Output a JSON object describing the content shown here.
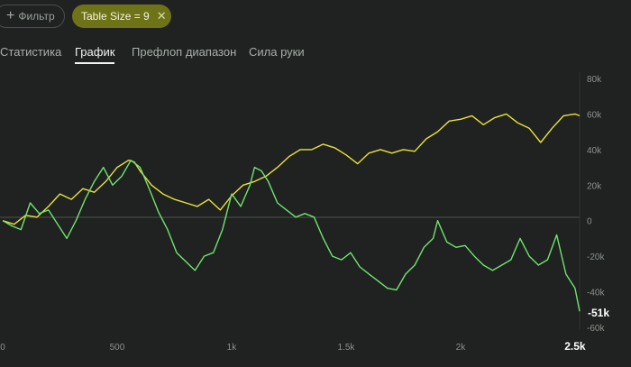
{
  "filter_chip": {
    "label": "Фильтр",
    "icon": "plus-icon"
  },
  "table_chip": {
    "label": "Table Size = 9",
    "icon": "close-icon"
  },
  "tabs": [
    {
      "label": "Статистика",
      "active": false
    },
    {
      "label": "График",
      "active": true
    },
    {
      "label": "Префлоп диапазон",
      "active": false
    },
    {
      "label": "Сила руки",
      "active": false
    }
  ],
  "colors": {
    "background": "#1f2220",
    "yellow_series": "#e9e23a",
    "green_series": "#72e36f",
    "chip_active": "#6f7317"
  },
  "chart_data": {
    "type": "line",
    "title": "",
    "xlabel": "",
    "ylabel": "",
    "x_ticks": [
      "0",
      "500",
      "1k",
      "1.5k",
      "2k",
      "2.5k"
    ],
    "x_tick_values": [
      0,
      500,
      1000,
      1500,
      2000,
      2500
    ],
    "y_ticks": [
      "80k",
      "60k",
      "40k",
      "20k",
      "0",
      "-20k",
      "-40k",
      "-60k"
    ],
    "y_tick_values": [
      80000,
      60000,
      40000,
      20000,
      0,
      -20000,
      -40000,
      -60000
    ],
    "xlim": [
      0,
      2520
    ],
    "ylim": [
      -60000,
      80000
    ],
    "grid": false,
    "zero_line": true,
    "end_labels": {
      "x": "2.5k",
      "y": "-51k"
    },
    "series": [
      {
        "color": "#e9e23a",
        "x": [
          0,
          50,
          100,
          150,
          200,
          250,
          300,
          350,
          400,
          450,
          500,
          550,
          575,
          600,
          650,
          700,
          750,
          800,
          850,
          900,
          950,
          1000,
          1050,
          1100,
          1150,
          1200,
          1250,
          1300,
          1350,
          1400,
          1450,
          1500,
          1550,
          1600,
          1650,
          1700,
          1750,
          1800,
          1850,
          1900,
          1950,
          2000,
          2050,
          2100,
          2150,
          2200,
          2250,
          2300,
          2350,
          2400,
          2450,
          2500,
          2520
        ],
        "y": [
          0,
          -2000,
          3000,
          2000,
          8000,
          15000,
          12000,
          18000,
          16000,
          22000,
          30000,
          34000,
          33000,
          28000,
          20000,
          15000,
          12000,
          10000,
          8000,
          12000,
          6000,
          14000,
          20000,
          22000,
          25000,
          30000,
          36000,
          40000,
          40000,
          43000,
          41000,
          37000,
          32000,
          38000,
          40000,
          38000,
          40000,
          39000,
          46000,
          50000,
          56000,
          57000,
          59000,
          54000,
          58000,
          60000,
          55000,
          52000,
          44000,
          52000,
          59000,
          60000,
          59000
        ]
      },
      {
        "color": "#72e36f",
        "x": [
          0,
          40,
          80,
          120,
          160,
          200,
          240,
          280,
          320,
          360,
          400,
          440,
          480,
          520,
          560,
          600,
          640,
          680,
          720,
          760,
          800,
          840,
          880,
          920,
          960,
          1000,
          1040,
          1080,
          1100,
          1130,
          1160,
          1200,
          1240,
          1280,
          1320,
          1360,
          1400,
          1440,
          1480,
          1520,
          1560,
          1600,
          1640,
          1680,
          1720,
          1760,
          1800,
          1840,
          1880,
          1900,
          1940,
          1980,
          2020,
          2060,
          2100,
          2140,
          2180,
          2220,
          2260,
          2300,
          2340,
          2380,
          2420,
          2460,
          2500,
          2520
        ],
        "y": [
          0,
          -3000,
          -5000,
          10000,
          4000,
          6000,
          -2000,
          -10000,
          0,
          12000,
          22000,
          30000,
          20000,
          25000,
          34000,
          30000,
          18000,
          5000,
          -5000,
          -18000,
          -23000,
          -28000,
          -20000,
          -18000,
          -5000,
          15000,
          8000,
          20000,
          30000,
          28000,
          22000,
          10000,
          6000,
          2000,
          4000,
          2000,
          -10000,
          -20000,
          -22000,
          -18000,
          -26000,
          -30000,
          -34000,
          -38000,
          -39000,
          -30000,
          -25000,
          -15000,
          -10000,
          0,
          -12000,
          -15000,
          -14000,
          -20000,
          -25000,
          -28000,
          -25000,
          -22000,
          -10000,
          -20000,
          -25000,
          -22000,
          -8000,
          -30000,
          -38000,
          -51000
        ]
      }
    ]
  }
}
